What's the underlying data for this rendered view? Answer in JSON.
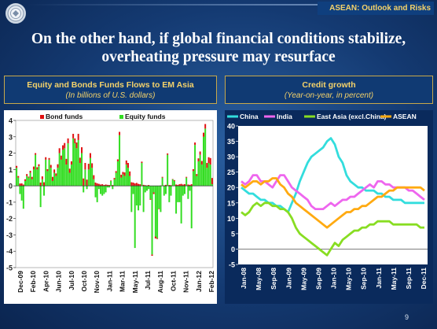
{
  "header": {
    "tag": "ASEAN: Outlook and Risks",
    "title_line1": "On the other hand, if global financial conditions stabilize,",
    "title_line2": "overheating pressure may resurface"
  },
  "page_number": "9",
  "colors": {
    "bond": "#e01010",
    "equity": "#33dd22",
    "china": "#33dddd",
    "india": "#ee66ee",
    "east_asia": "#88dd22",
    "asean": "#ffaa11",
    "panel_text": "#f4d26a"
  },
  "chart_data": [
    {
      "type": "bar",
      "title": "Equity and Bonds Funds Flows to EM Asia",
      "subtitle": "(In billions of U.S. dollars)",
      "ylim": [
        -5,
        4
      ],
      "yticks": [
        -5,
        -4,
        -3,
        -2,
        -1,
        0,
        1,
        2,
        3,
        4
      ],
      "xtick_labels": [
        "Dec-09",
        "Feb-10",
        "Apr-10",
        "Jun-10",
        "Jul-10",
        "Oct-10",
        "Nov-10",
        "Jan-11",
        "Mar-11",
        "May-11",
        "Jul-11",
        "Aug-11",
        "Oct-11",
        "Nov-11",
        "Jan-12",
        "Feb-12"
      ],
      "legend": [
        "Bond funds",
        "Equity funds"
      ],
      "weekly_weeks": 115,
      "series": [
        {
          "name": "Bond funds",
          "values": [
            0.12,
            0.1,
            0.14,
            0.15,
            0.08,
            0.1,
            0.12,
            0.06,
            0.12,
            0.15,
            0.18,
            0.1,
            0.14,
            0.12,
            0.2,
            0.18,
            0.22,
            0.15,
            0.12,
            0.1,
            0.18,
            0.25,
            0.2,
            0.16,
            0.22,
            0.3,
            0.25,
            0.28,
            0.32,
            0.35,
            0.3,
            0.25,
            0.2,
            0.28,
            0.3,
            0.35,
            0.38,
            0.32,
            0.36,
            0.45,
            0.4,
            0.38,
            0.35,
            0.3,
            0.28,
            0.25,
            0.2,
            0.15,
            0.12,
            0.08,
            0.1,
            0.05,
            0.08,
            0.06,
            0.05,
            0.03,
            0.05,
            0.08,
            0.1,
            0.12,
            0.2,
            0.18,
            0.15,
            0.22,
            0.25,
            0.3,
            0.28,
            0.22,
            0.2,
            0.15,
            0.18,
            0.12,
            0.1,
            0.08,
            0.06,
            0.04,
            0.02,
            0.05,
            -0.05,
            -0.08,
            -0.1,
            -0.12,
            -0.05,
            -0.03,
            0.02,
            0.05,
            0.03,
            0.06,
            0.08,
            0.05,
            0.04,
            0.02,
            0.05,
            0.08,
            0.06,
            0.1,
            0.12,
            0.08,
            0.1,
            0.05,
            0.08,
            0.06,
            0.1,
            0.12,
            0.15,
            0.12,
            0.18,
            0.2,
            0.22,
            0.25,
            0.28,
            0.3,
            0.35,
            0.4,
            0.38
          ]
        },
        {
          "name": "Equity funds",
          "values": [
            1.1,
            0.5,
            -0.5,
            -0.9,
            -1.4,
            0.3,
            0.6,
            0.5,
            0.8,
            0.4,
            1.0,
            1.9,
            1.0,
            1.2,
            -1.3,
            0.4,
            -0.6,
            1.6,
            0.9,
            1.6,
            1.1,
            0.3,
            0.8,
            0.6,
            1.1,
            2.0,
            1.6,
            2.2,
            2.3,
            1.3,
            2.6,
            0.8,
            1.3,
            2.9,
            2.6,
            2.3,
            2.8,
            1.4,
            2.0,
            -0.4,
            1.0,
            -0.2,
            1.0,
            1.7,
            1.1,
            0.4,
            -0.7,
            -1.0,
            -0.2,
            -0.5,
            -0.6,
            -0.5,
            -0.4,
            -0.1,
            -0.1,
            0.3,
            -0.2,
            0.4,
            0.8,
            1.5,
            3.1,
            0.5,
            0.7,
            0.6,
            1.3,
            1.1,
            0.6,
            -1.6,
            -0.5,
            -3.8,
            -1.2,
            -1.5,
            -1.2,
            1.4,
            -1.6,
            -0.4,
            -0.3,
            -0.2,
            -0.8,
            -4.2,
            -0.4,
            -3.1,
            -3.2,
            -1.4,
            -1.6,
            0.5,
            -0.6,
            -0.5,
            1.9,
            -1.0,
            -0.6,
            0.4,
            0.3,
            -1.7,
            -1.0,
            -1.0,
            -2.3,
            -0.6,
            -0.5,
            0.5,
            -0.8,
            -0.3,
            -2.6,
            0.9,
            2.5,
            0.6,
            1.5,
            1.9,
            1.3,
            3.0,
            3.5,
            1.1,
            1.4,
            1.3,
            0.1
          ]
        }
      ]
    },
    {
      "type": "line",
      "title": "Credit growth",
      "subtitle": "(Year-on-year, in percent)",
      "ylim": [
        -5,
        40
      ],
      "yticks": [
        -5,
        0,
        5,
        10,
        15,
        20,
        25,
        30,
        35,
        40
      ],
      "xtick_labels": [
        "Jan-08",
        "May-08",
        "Sep-08",
        "Jan-09",
        "May-09",
        "Sep-09",
        "Jan-10",
        "May-10",
        "Sep-10",
        "Jan-11",
        "May-11",
        "Sep-11",
        "Dec-11"
      ],
      "x_months": 48,
      "legend": [
        "China",
        "India",
        "East Asia (excl.China)",
        "ASEAN"
      ],
      "series": [
        {
          "name": "China",
          "values": [
            20,
            19,
            18,
            18,
            17,
            16,
            16,
            15,
            15,
            14,
            14,
            13,
            12,
            15,
            18,
            22,
            25,
            28,
            30,
            31,
            32,
            33,
            35,
            36,
            34,
            30,
            28,
            24,
            22,
            21,
            20,
            20,
            19,
            19,
            19,
            18,
            18,
            17,
            17,
            16,
            16,
            16,
            15,
            15,
            15,
            15,
            15,
            15
          ]
        },
        {
          "name": "India",
          "values": [
            22,
            21,
            22,
            24,
            24,
            22,
            22,
            21,
            20,
            22,
            24,
            24,
            22,
            20,
            19,
            18,
            17,
            16,
            14,
            13,
            13,
            13,
            14,
            15,
            14,
            15,
            16,
            16,
            17,
            17,
            18,
            19,
            20,
            21,
            20,
            22,
            22,
            21,
            21,
            20,
            20,
            20,
            20,
            19,
            19,
            18,
            17,
            16
          ]
        },
        {
          "name": "East Asia (excl.China)",
          "values": [
            12,
            11,
            12,
            14,
            15,
            14,
            15,
            15,
            14,
            14,
            13,
            13,
            12,
            10,
            7,
            5,
            4,
            3,
            2,
            1,
            0,
            -1,
            -2,
            0,
            2,
            1,
            3,
            4,
            5,
            6,
            6,
            7,
            7,
            8,
            8,
            9,
            9,
            9,
            9,
            8,
            8,
            8,
            8,
            8,
            8,
            8,
            7,
            7
          ]
        },
        {
          "name": "ASEAN",
          "values": [
            21,
            20,
            21,
            22,
            22,
            21,
            22,
            22,
            23,
            23,
            21,
            20,
            18,
            17,
            15,
            14,
            13,
            12,
            11,
            10,
            9,
            8,
            7,
            8,
            9,
            10,
            11,
            12,
            12,
            13,
            13,
            14,
            14,
            15,
            16,
            17,
            17,
            18,
            19,
            19,
            20,
            20,
            20,
            20,
            20,
            20,
            20,
            19
          ]
        }
      ]
    }
  ]
}
